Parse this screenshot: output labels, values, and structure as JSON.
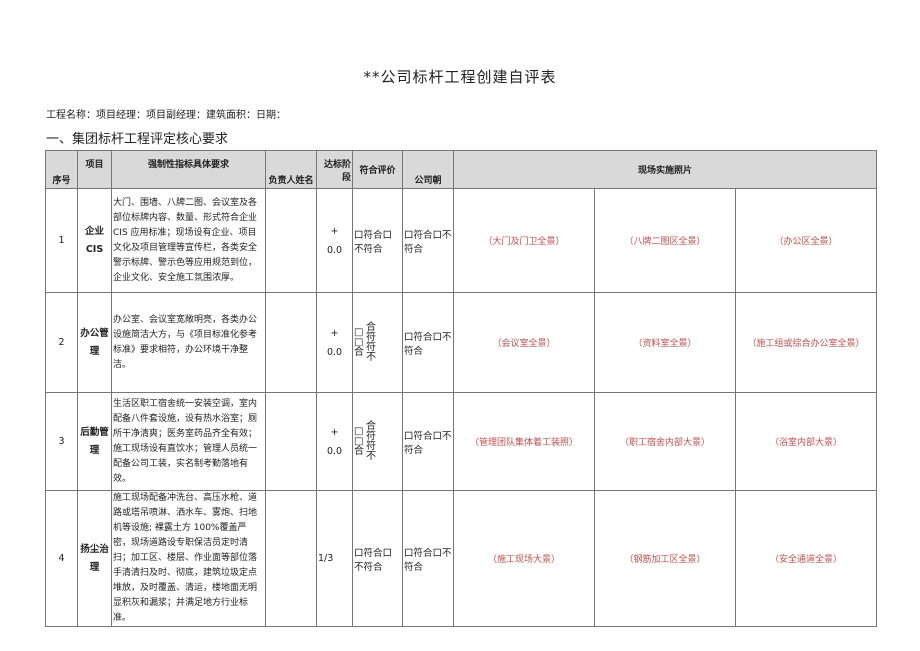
{
  "title": "**公司标杆工程创建自评表",
  "info_line": "工程名称：项目经理：项目副经理：建筑面积：日期：",
  "section_title": "一、集团标杆工程评定核心要求",
  "headers": {
    "seq": "序号",
    "item": "项目",
    "req": "强制性指标具体要求",
    "owner": "负责人姓名",
    "stage": "达标阶段",
    "eval": "符合评价",
    "company": "公司朝",
    "photos": "现场实施照片"
  },
  "rows": [
    {
      "seq": "1",
      "item": "企业CIS",
      "req": "大门、围墙、八牌二图、会议室及各部位标牌内容、数量、形式符合企业CIS 应用标准；现场设有企业、项目文化及项目管理等宣传栏，各类安全警示标牌、警示色等应用规范到位，企业文化、安全施工氛围浓厚。",
      "owner": "",
      "stage": "+\n0.0",
      "eval": "口符合口不符合",
      "company": "口符合口不符合",
      "photos": [
        "（大门及门卫全景）",
        "（八牌二图区全景）",
        "（办公区全景）"
      ]
    },
    {
      "seq": "2",
      "item": "办公管理",
      "req": "办公室、会议室宽敞明亮，各类办公设施简洁大方，与《项目标准化参考标准》要求相符，办公环境干净整洁。",
      "owner": "",
      "stage": "+\n0.0",
      "eval_left": "□\n□\n合",
      "eval_right": "合\n符\n符\n不",
      "company": "口符合口不符合",
      "photos": [
        "（会议室全景）",
        "（资料室全景）",
        "（施工组或综合办公室全景）"
      ]
    },
    {
      "seq": "3",
      "item": "后勤管理",
      "req": "生活区职工宿舍统一安装空调，室内配备八件套设施，设有热水浴室；厕所干净清爽；医务室药品齐全有效；施工现场设有直饮水；管理人员统一配备公司工装，实名制考勤落地有效。",
      "owner": "",
      "stage": "+\n0.0",
      "eval_left": "□\n□\n合",
      "eval_right": "合\n符\n符\n不",
      "company": "口符合口不符合",
      "photos": [
        "（管理团队集体着工装照）",
        "（职工宿舍内部大景）",
        "（浴室内部大景）"
      ]
    },
    {
      "seq": "4",
      "item": "扬尘治理",
      "req": "施工现场配备冲洗台、高压水枪、道路或塔吊喷淋、洒水车、雾炮、扫地机等设施; 裸露土方 100%覆盖严密，现场道路设专职保洁员定时清扫；加工区、楼层、作业面等部位落手清清扫及时、彻底，建筑垃圾定点堆放，及时覆盖、清运，楼地面无明显积灰和漏浆；并满足地方行业标准。",
      "owner": "",
      "stage": "1/3",
      "eval": "口符合口不符合",
      "company": "口符合口不符合",
      "photos": [
        "（施工现场大景）",
        "（钢筋加工区全景）",
        "（安全通道全景）"
      ]
    }
  ],
  "colors": {
    "header_bg": "#d9d9d9",
    "photo_text": "#c0504d",
    "border": "#777777"
  }
}
